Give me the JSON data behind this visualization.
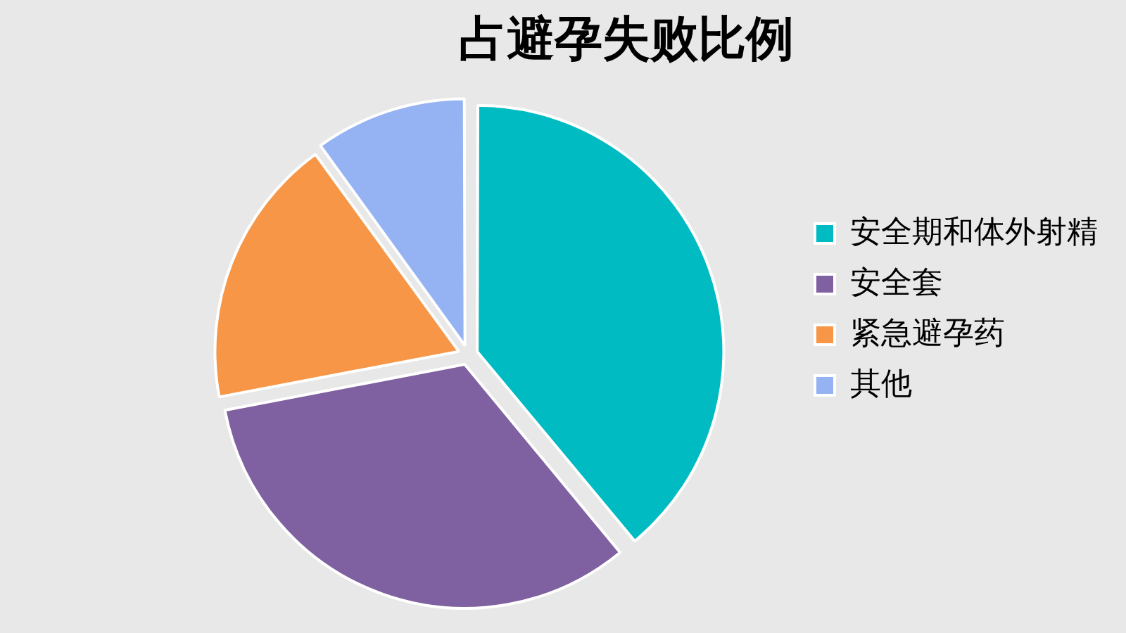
{
  "chart_data": {
    "type": "pie",
    "title": "占避孕失败比例",
    "categories": [
      "安全期和体外射精",
      "安全套",
      "紧急避孕药",
      "其他"
    ],
    "values": [
      39,
      33,
      18,
      10
    ],
    "colors": [
      "#00bbc2",
      "#7f60a0",
      "#f79646",
      "#95b3f2"
    ],
    "legend": "right"
  }
}
